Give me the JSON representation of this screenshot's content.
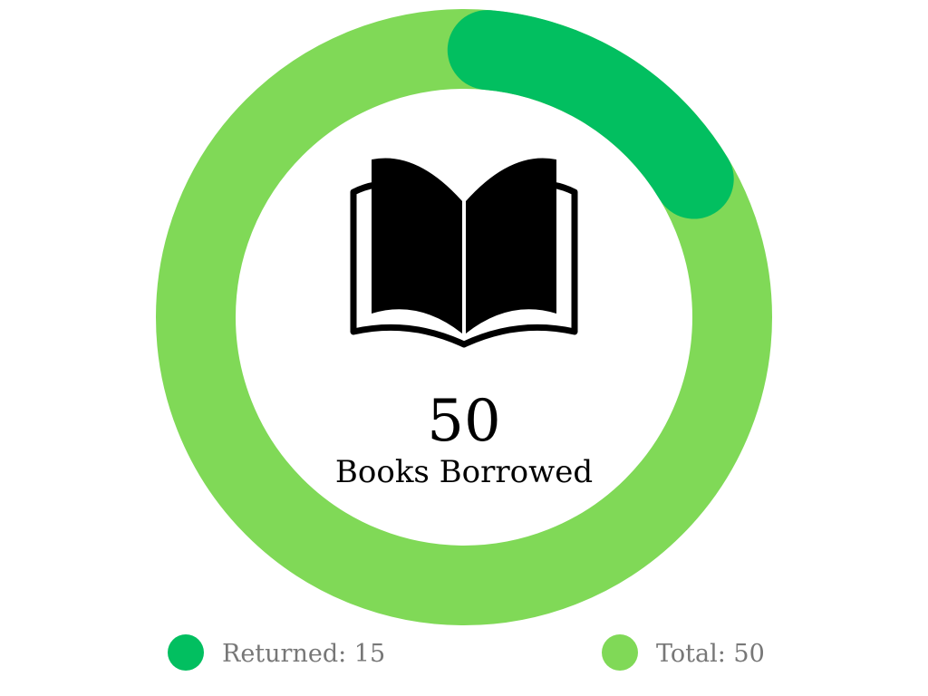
{
  "chart_data": {
    "type": "pie",
    "variant": "donut-progress",
    "total": 50,
    "segments": [
      {
        "key": "returned",
        "value": 15,
        "color": "#02BF60"
      },
      {
        "key": "total",
        "value": 50,
        "color": "#80D957"
      }
    ],
    "center": {
      "icon": "open-book-icon",
      "value": "50",
      "label": "Books Borrowed"
    },
    "legend": {
      "placement": "bottom",
      "items": [
        {
          "label": "Returned: 15",
          "color": "#02BF60"
        },
        {
          "label": "Total: 50",
          "color": "#80D957"
        }
      ]
    }
  }
}
